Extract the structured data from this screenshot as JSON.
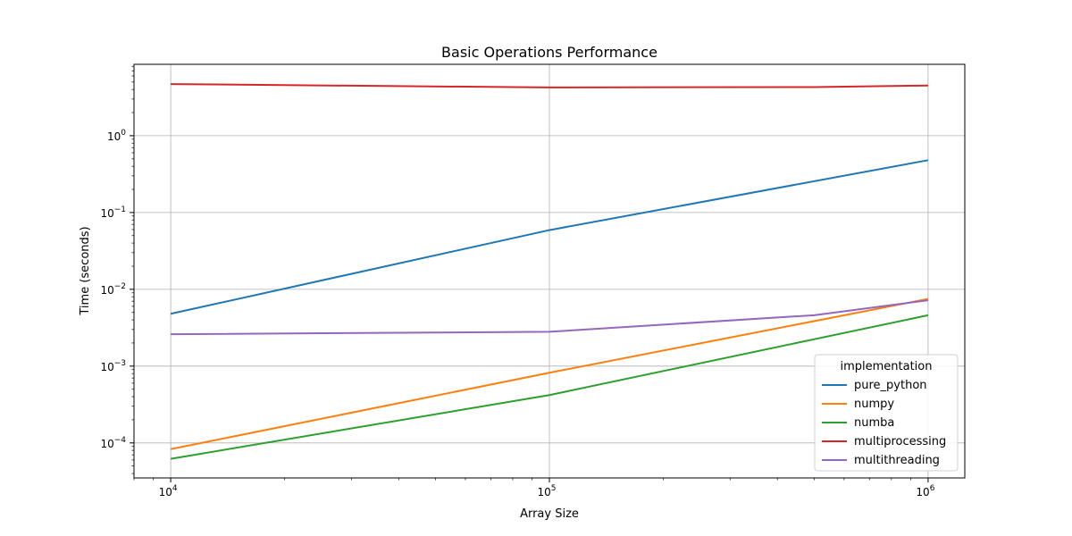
{
  "chart_data": {
    "type": "line",
    "title": "Basic Operations Performance",
    "xlabel": "Array Size",
    "ylabel": "Time (seconds)",
    "x_scale": "log",
    "y_scale": "log",
    "xlim": [
      8000,
      1250000
    ],
    "ylim": [
      3.5e-05,
      8.5
    ],
    "grid": true,
    "x_ticks": [
      {
        "value": 10000,
        "base": "10",
        "exp": "4"
      },
      {
        "value": 100000,
        "base": "10",
        "exp": "5"
      },
      {
        "value": 1000000,
        "base": "10",
        "exp": "6"
      }
    ],
    "y_ticks": [
      {
        "value": 0.0001,
        "base": "10",
        "exp": "−4"
      },
      {
        "value": 0.001,
        "base": "10",
        "exp": "−3"
      },
      {
        "value": 0.01,
        "base": "10",
        "exp": "−2"
      },
      {
        "value": 0.1,
        "base": "10",
        "exp": "−1"
      },
      {
        "value": 1,
        "base": "10",
        "exp": "0"
      }
    ],
    "legend": {
      "title": "implementation",
      "position": "lower right"
    },
    "series": [
      {
        "name": "pure_python",
        "color": "#1f77b4",
        "x": [
          10000,
          100000,
          1000000
        ],
        "y": [
          0.0048,
          0.059,
          0.48
        ]
      },
      {
        "name": "numpy",
        "color": "#ff7f0e",
        "x": [
          10000,
          100000,
          1000000
        ],
        "y": [
          8.3e-05,
          0.00082,
          0.0075
        ]
      },
      {
        "name": "numba",
        "color": "#2ca02c",
        "x": [
          10000,
          100000,
          1000000
        ],
        "y": [
          6.2e-05,
          0.00042,
          0.0046
        ]
      },
      {
        "name": "multiprocessing",
        "color": "#d62728",
        "x": [
          10000,
          100000,
          500000,
          1000000
        ],
        "y": [
          4.7,
          4.25,
          4.3,
          4.5
        ]
      },
      {
        "name": "multithreading",
        "color": "#9467bd",
        "x": [
          10000,
          100000,
          500000,
          1000000
        ],
        "y": [
          0.0026,
          0.0028,
          0.0046,
          0.0072
        ]
      }
    ]
  }
}
